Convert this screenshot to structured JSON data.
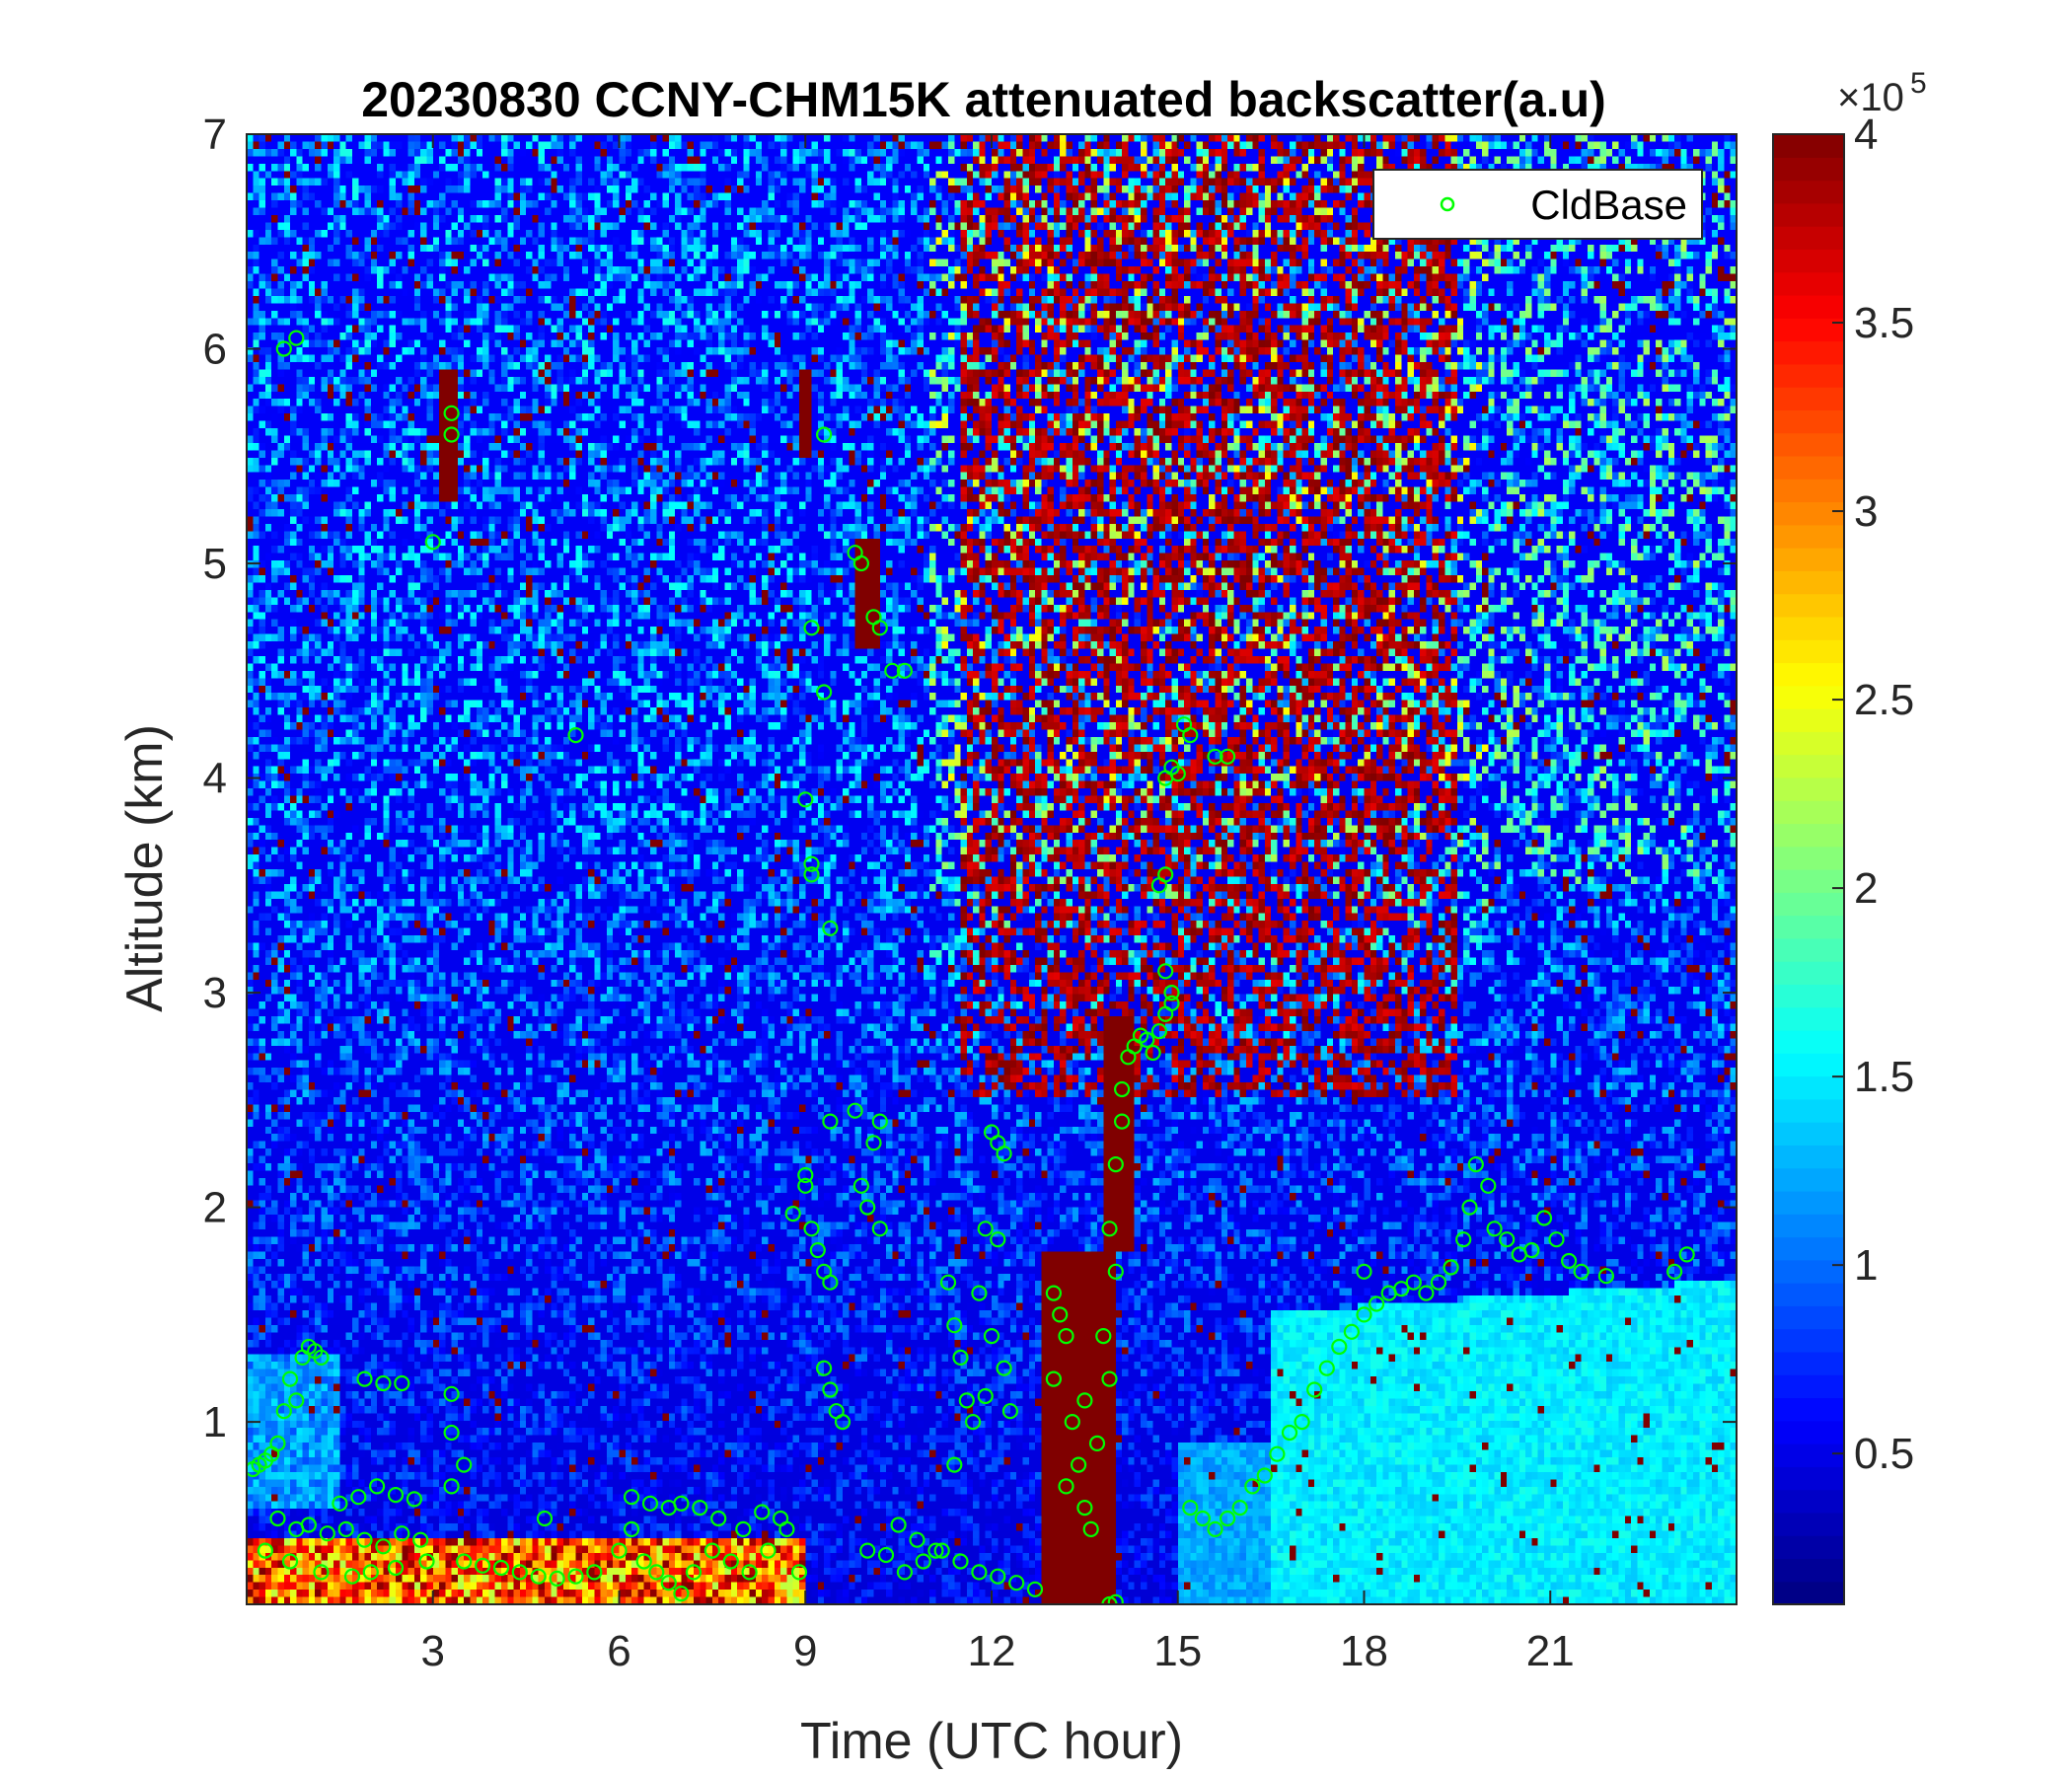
{
  "chart_data": {
    "type": "heatmap",
    "title": "20230830 CCNY-CHM15K attenuated backscatter(a.u)",
    "xlabel": "Time (UTC hour)",
    "ylabel": "Altitude (km)",
    "xlim": [
      0,
      24
    ],
    "ylim": [
      0.15,
      7
    ],
    "xticks": [
      3,
      6,
      9,
      12,
      15,
      18,
      21
    ],
    "xtick_labels": [
      "3",
      "6",
      "9",
      "12",
      "15",
      "18",
      "21"
    ],
    "yticks": [
      1,
      2,
      3,
      4,
      5,
      6,
      7
    ],
    "ytick_labels": [
      "1",
      "2",
      "3",
      "4",
      "5",
      "6",
      "7"
    ],
    "colormap": "jet",
    "colorbar": {
      "range": [
        0.1,
        4
      ],
      "ticks": [
        0.5,
        1,
        1.5,
        2,
        2.5,
        3,
        3.5,
        4
      ],
      "tick_labels": [
        "0.5",
        "1",
        "1.5",
        "2",
        "2.5",
        "3",
        "3.5",
        "4"
      ],
      "multiplier": "×10",
      "multiplier_exponent": "5"
    },
    "legend": {
      "entries": [
        "CldBase"
      ],
      "location": "top-right",
      "marker": "circle",
      "color": "#00ff00"
    },
    "series": [
      {
        "name": "CldBase",
        "points": [
          [
            0.1,
            0.78
          ],
          [
            0.2,
            0.8
          ],
          [
            0.3,
            0.82
          ],
          [
            0.4,
            0.85
          ],
          [
            0.5,
            0.9
          ],
          [
            0.6,
            1.05
          ],
          [
            0.7,
            1.2
          ],
          [
            0.8,
            1.1
          ],
          [
            0.9,
            1.3
          ],
          [
            1.0,
            1.35
          ],
          [
            1.1,
            1.33
          ],
          [
            1.2,
            1.3
          ],
          [
            0.5,
            0.55
          ],
          [
            0.8,
            0.5
          ],
          [
            1.0,
            0.52
          ],
          [
            1.3,
            0.48
          ],
          [
            1.6,
            0.5
          ],
          [
            1.9,
            0.45
          ],
          [
            2.2,
            0.42
          ],
          [
            2.5,
            0.48
          ],
          [
            2.8,
            0.45
          ],
          [
            0.3,
            0.4
          ],
          [
            0.7,
            0.35
          ],
          [
            1.2,
            0.3
          ],
          [
            1.7,
            0.28
          ],
          [
            2.0,
            0.3
          ],
          [
            2.4,
            0.32
          ],
          [
            2.9,
            0.35
          ],
          [
            1.5,
            0.62
          ],
          [
            1.8,
            0.65
          ],
          [
            2.1,
            0.7
          ],
          [
            2.4,
            0.66
          ],
          [
            2.7,
            0.64
          ],
          [
            1.9,
            1.2
          ],
          [
            2.2,
            1.18
          ],
          [
            2.5,
            1.18
          ],
          [
            0.6,
            6.0
          ],
          [
            0.8,
            6.05
          ],
          [
            3.3,
            1.13
          ],
          [
            3.3,
            0.95
          ],
          [
            3.5,
            0.8
          ],
          [
            3.3,
            0.7
          ],
          [
            3.3,
            5.6
          ],
          [
            3.3,
            5.7
          ],
          [
            3.0,
            5.1
          ],
          [
            3.5,
            0.35
          ],
          [
            3.8,
            0.33
          ],
          [
            4.1,
            0.32
          ],
          [
            4.4,
            0.3
          ],
          [
            4.7,
            0.28
          ],
          [
            5.0,
            0.27
          ],
          [
            5.3,
            0.28
          ],
          [
            5.6,
            0.3
          ],
          [
            4.8,
            0.55
          ],
          [
            5.3,
            4.2
          ],
          [
            6.0,
            0.4
          ],
          [
            6.2,
            0.5
          ],
          [
            6.4,
            0.35
          ],
          [
            6.6,
            0.3
          ],
          [
            6.8,
            0.25
          ],
          [
            7.0,
            0.2
          ],
          [
            7.2,
            0.3
          ],
          [
            7.5,
            0.4
          ],
          [
            7.8,
            0.35
          ],
          [
            8.1,
            0.3
          ],
          [
            8.4,
            0.4
          ],
          [
            8.7,
            0.5
          ],
          [
            8.9,
            0.3
          ],
          [
            7.0,
            0.62
          ],
          [
            7.3,
            0.6
          ],
          [
            7.6,
            0.55
          ],
          [
            8.0,
            0.5
          ],
          [
            8.3,
            0.58
          ],
          [
            8.6,
            0.55
          ],
          [
            6.2,
            0.65
          ],
          [
            6.5,
            0.62
          ],
          [
            6.8,
            0.6
          ],
          [
            8.8,
            1.97
          ],
          [
            9.0,
            2.1
          ],
          [
            9.0,
            2.15
          ],
          [
            9.1,
            1.9
          ],
          [
            9.2,
            1.8
          ],
          [
            9.3,
            1.7
          ],
          [
            9.4,
            1.65
          ],
          [
            9.3,
            1.25
          ],
          [
            9.4,
            1.15
          ],
          [
            9.5,
            1.05
          ],
          [
            9.6,
            1.0
          ],
          [
            9.0,
            3.9
          ],
          [
            9.1,
            3.55
          ],
          [
            9.1,
            3.6
          ],
          [
            9.4,
            3.3
          ],
          [
            9.3,
            5.6
          ],
          [
            9.4,
            2.4
          ],
          [
            9.3,
            4.4
          ],
          [
            9.1,
            4.7
          ],
          [
            9.8,
            5.05
          ],
          [
            9.9,
            5.0
          ],
          [
            10.1,
            4.75
          ],
          [
            10.2,
            4.7
          ],
          [
            10.4,
            4.5
          ],
          [
            10.6,
            4.5
          ],
          [
            9.8,
            2.45
          ],
          [
            9.9,
            2.1
          ],
          [
            10.0,
            2.0
          ],
          [
            10.1,
            2.3
          ],
          [
            10.2,
            2.4
          ],
          [
            10.2,
            1.9
          ],
          [
            10.0,
            0.4
          ],
          [
            10.3,
            0.38
          ],
          [
            10.6,
            0.3
          ],
          [
            10.9,
            0.35
          ],
          [
            11.2,
            0.4
          ],
          [
            11.5,
            0.35
          ],
          [
            11.8,
            0.3
          ],
          [
            12.1,
            0.28
          ],
          [
            12.4,
            0.25
          ],
          [
            12.7,
            0.22
          ],
          [
            10.5,
            0.52
          ],
          [
            10.8,
            0.45
          ],
          [
            11.1,
            0.4
          ],
          [
            11.3,
            1.65
          ],
          [
            11.4,
            1.45
          ],
          [
            11.5,
            1.3
          ],
          [
            11.6,
            1.1
          ],
          [
            11.4,
            0.8
          ],
          [
            11.8,
            1.6
          ],
          [
            11.9,
            1.9
          ],
          [
            12.1,
            1.85
          ],
          [
            12.0,
            1.4
          ],
          [
            12.2,
            1.25
          ],
          [
            12.3,
            1.05
          ],
          [
            12.0,
            2.35
          ],
          [
            12.1,
            2.3
          ],
          [
            12.2,
            2.25
          ],
          [
            11.7,
            1.0
          ],
          [
            11.9,
            1.12
          ],
          [
            13.0,
            1.6
          ],
          [
            13.1,
            1.5
          ],
          [
            13.2,
            1.4
          ],
          [
            13.0,
            1.2
          ],
          [
            13.3,
            1.0
          ],
          [
            13.4,
            0.8
          ],
          [
            13.5,
            0.6
          ],
          [
            13.6,
            0.5
          ],
          [
            13.5,
            1.1
          ],
          [
            13.2,
            0.7
          ],
          [
            13.7,
            0.9
          ],
          [
            13.8,
            1.4
          ],
          [
            13.9,
            1.2
          ],
          [
            13.9,
            1.9
          ],
          [
            14.0,
            1.7
          ],
          [
            13.9,
            0.15
          ],
          [
            14.0,
            0.16
          ],
          [
            14.0,
            2.2
          ],
          [
            14.1,
            2.4
          ],
          [
            14.1,
            2.55
          ],
          [
            14.2,
            2.7
          ],
          [
            14.3,
            2.75
          ],
          [
            14.4,
            2.8
          ],
          [
            14.5,
            2.78
          ],
          [
            14.6,
            2.72
          ],
          [
            14.7,
            2.82
          ],
          [
            14.8,
            2.9
          ],
          [
            14.9,
            3.0
          ],
          [
            14.8,
            3.1
          ],
          [
            14.7,
            3.5
          ],
          [
            14.8,
            3.55
          ],
          [
            14.8,
            4.0
          ],
          [
            14.9,
            4.05
          ],
          [
            15.0,
            4.02
          ],
          [
            15.1,
            4.25
          ],
          [
            15.2,
            4.2
          ],
          [
            15.6,
            4.1
          ],
          [
            15.8,
            4.1
          ],
          [
            14.9,
            2.95
          ],
          [
            15.2,
            0.6
          ],
          [
            15.4,
            0.55
          ],
          [
            15.6,
            0.5
          ],
          [
            15.8,
            0.55
          ],
          [
            16.0,
            0.6
          ],
          [
            16.2,
            0.7
          ],
          [
            16.4,
            0.75
          ],
          [
            16.6,
            0.85
          ],
          [
            16.8,
            0.95
          ],
          [
            17.0,
            1.0
          ],
          [
            17.2,
            1.15
          ],
          [
            17.4,
            1.25
          ],
          [
            17.6,
            1.35
          ],
          [
            17.8,
            1.42
          ],
          [
            18.0,
            1.5
          ],
          [
            18.0,
            1.7
          ],
          [
            18.2,
            1.55
          ],
          [
            18.4,
            1.6
          ],
          [
            18.6,
            1.62
          ],
          [
            18.8,
            1.65
          ],
          [
            19.0,
            1.6
          ],
          [
            19.2,
            1.65
          ],
          [
            19.4,
            1.72
          ],
          [
            19.6,
            1.85
          ],
          [
            19.7,
            2.0
          ],
          [
            19.8,
            2.2
          ],
          [
            20.0,
            2.1
          ],
          [
            20.1,
            1.9
          ],
          [
            20.3,
            1.85
          ],
          [
            20.5,
            1.78
          ],
          [
            20.7,
            1.8
          ],
          [
            20.9,
            1.95
          ],
          [
            21.1,
            1.85
          ],
          [
            21.3,
            1.75
          ],
          [
            21.5,
            1.7
          ],
          [
            21.9,
            1.68
          ],
          [
            23.0,
            1.7
          ],
          [
            23.2,
            1.78
          ]
        ]
      }
    ]
  }
}
